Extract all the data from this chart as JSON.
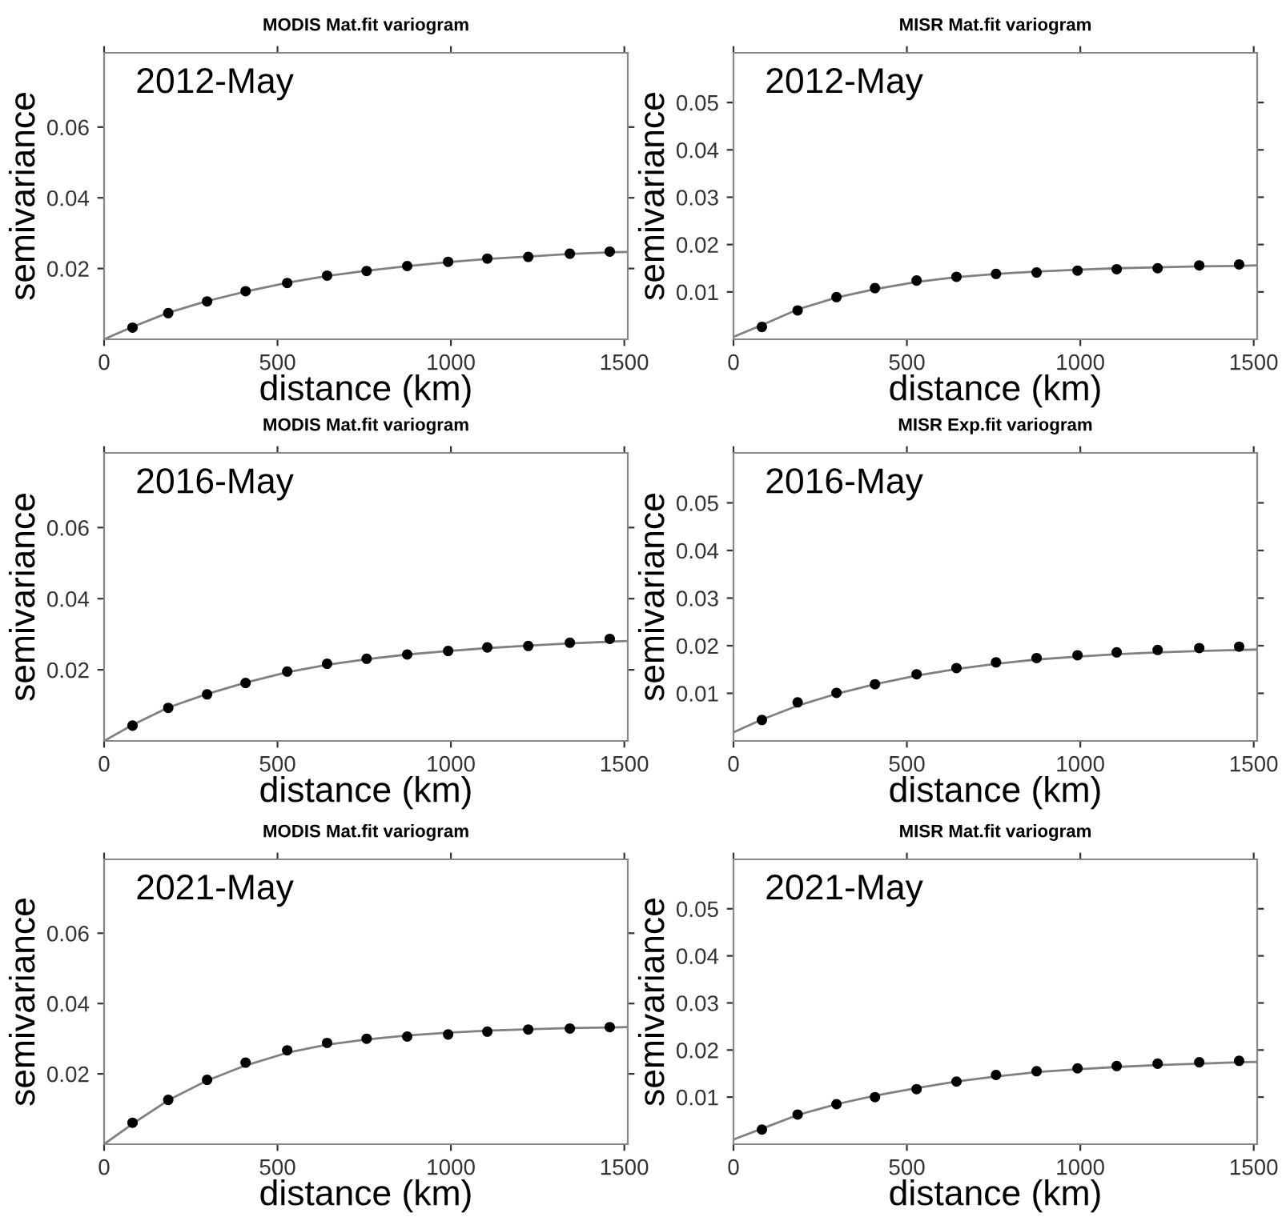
{
  "chart_data": [
    {
      "type": "scatter",
      "title": "MODIS Mat.fit variogram",
      "xlabel": "distance (km)",
      "ylabel": "semivariance",
      "annotations": [
        "2012-May"
      ],
      "xlim": [
        0,
        1510
      ],
      "xticks": [
        0,
        500,
        1000,
        1500
      ],
      "ylim": [
        0,
        0.081
      ],
      "yticks": [
        0.02,
        0.04,
        0.06
      ],
      "grid": false,
      "series": [
        {
          "color": "#000000",
          "marker": "circle",
          "x": [
            82,
            185,
            297,
            408,
            528,
            643,
            757,
            874,
            992,
            1105,
            1223,
            1343,
            1458
          ],
          "values": [
            0.0033,
            0.0074,
            0.0107,
            0.0136,
            0.0159,
            0.018,
            0.0193,
            0.0207,
            0.0219,
            0.0228,
            0.0233,
            0.0242,
            0.0248
          ]
        },
        {
          "type": "line",
          "color": "#808080",
          "marker": "none",
          "line_style": "solid",
          "x": [
            0,
            82,
            185,
            297,
            408,
            528,
            643,
            757,
            874,
            992,
            1105,
            1223,
            1343,
            1458,
            1510
          ],
          "values": [
            0,
            0.0035,
            0.0075,
            0.0108,
            0.0135,
            0.016,
            0.0179,
            0.0194,
            0.0207,
            0.0218,
            0.0227,
            0.0234,
            0.0241,
            0.0246,
            0.0247
          ]
        }
      ]
    },
    {
      "type": "scatter",
      "title": "MISR Mat.fit variogram",
      "xlabel": "distance (km)",
      "ylabel": "semivariance",
      "annotations": [
        "2012-May"
      ],
      "xlim": [
        0,
        1510
      ],
      "xticks": [
        0,
        500,
        1000,
        1500
      ],
      "ylim": [
        0,
        0.0605
      ],
      "yticks": [
        0.01,
        0.02,
        0.03,
        0.04,
        0.05
      ],
      "grid": false,
      "series": [
        {
          "color": "#000000",
          "marker": "circle",
          "x": [
            82,
            185,
            297,
            408,
            528,
            643,
            757,
            874,
            992,
            1105,
            1223,
            1343,
            1458
          ],
          "values": [
            0.0026,
            0.0061,
            0.0089,
            0.0108,
            0.0124,
            0.0132,
            0.0138,
            0.0141,
            0.0145,
            0.0148,
            0.015,
            0.0156,
            0.0158
          ]
        },
        {
          "type": "line",
          "color": "#808080",
          "marker": "none",
          "line_style": "solid",
          "x": [
            0,
            82,
            185,
            297,
            408,
            528,
            643,
            757,
            874,
            992,
            1105,
            1223,
            1343,
            1458,
            1510
          ],
          "values": [
            0.0005,
            0.003,
            0.0063,
            0.0088,
            0.0106,
            0.0121,
            0.0131,
            0.0138,
            0.0143,
            0.0147,
            0.015,
            0.0152,
            0.0154,
            0.0155,
            0.0156
          ]
        }
      ]
    },
    {
      "type": "scatter",
      "title": "MODIS Mat.fit variogram",
      "xlabel": "distance (km)",
      "ylabel": "semivariance",
      "annotations": [
        "2016-May"
      ],
      "xlim": [
        0,
        1510
      ],
      "xticks": [
        0,
        500,
        1000,
        1500
      ],
      "ylim": [
        0,
        0.081
      ],
      "yticks": [
        0.02,
        0.04,
        0.06
      ],
      "grid": false,
      "series": [
        {
          "color": "#000000",
          "marker": "circle",
          "x": [
            82,
            185,
            297,
            408,
            528,
            643,
            757,
            874,
            992,
            1105,
            1223,
            1343,
            1458
          ],
          "values": [
            0.0043,
            0.0093,
            0.0131,
            0.0163,
            0.0195,
            0.0217,
            0.0231,
            0.0243,
            0.0253,
            0.0263,
            0.0267,
            0.0276,
            0.0287
          ]
        },
        {
          "type": "line",
          "color": "#808080",
          "marker": "none",
          "line_style": "solid",
          "x": [
            0,
            82,
            185,
            297,
            408,
            528,
            643,
            757,
            874,
            992,
            1105,
            1223,
            1343,
            1458,
            1510
          ],
          "values": [
            0,
            0.0045,
            0.0094,
            0.0132,
            0.0164,
            0.0193,
            0.0214,
            0.023,
            0.0243,
            0.0253,
            0.0261,
            0.0268,
            0.0274,
            0.0279,
            0.0281
          ]
        }
      ]
    },
    {
      "type": "scatter",
      "title": "MISR Exp.fit variogram",
      "xlabel": "distance (km)",
      "ylabel": "semivariance",
      "annotations": [
        "2016-May"
      ],
      "xlim": [
        0,
        1510
      ],
      "xticks": [
        0,
        500,
        1000,
        1500
      ],
      "ylim": [
        0,
        0.0605
      ],
      "yticks": [
        0.01,
        0.02,
        0.03,
        0.04,
        0.05
      ],
      "grid": false,
      "series": [
        {
          "color": "#000000",
          "marker": "circle",
          "x": [
            82,
            185,
            297,
            408,
            528,
            643,
            757,
            874,
            992,
            1105,
            1223,
            1343,
            1458
          ],
          "values": [
            0.0044,
            0.0081,
            0.0101,
            0.0119,
            0.014,
            0.0153,
            0.0165,
            0.0174,
            0.018,
            0.0186,
            0.0191,
            0.0195,
            0.0198
          ]
        },
        {
          "type": "line",
          "color": "#808080",
          "marker": "none",
          "line_style": "solid",
          "x": [
            0,
            82,
            185,
            297,
            408,
            528,
            643,
            757,
            874,
            992,
            1105,
            1223,
            1343,
            1458,
            1510
          ],
          "values": [
            0.0018,
            0.0045,
            0.0074,
            0.0099,
            0.0119,
            0.0137,
            0.0151,
            0.0162,
            0.0171,
            0.0177,
            0.0182,
            0.0186,
            0.0189,
            0.0191,
            0.0192
          ]
        }
      ]
    },
    {
      "type": "scatter",
      "title": "MODIS Mat.fit variogram",
      "xlabel": "distance (km)",
      "ylabel": "semivariance",
      "annotations": [
        "2021-May"
      ],
      "xlim": [
        0,
        1510
      ],
      "xticks": [
        0,
        500,
        1000,
        1500
      ],
      "ylim": [
        0,
        0.081
      ],
      "yticks": [
        0.02,
        0.04,
        0.06
      ],
      "grid": false,
      "series": [
        {
          "color": "#000000",
          "marker": "circle",
          "x": [
            82,
            185,
            297,
            408,
            528,
            643,
            757,
            874,
            992,
            1105,
            1223,
            1343,
            1458
          ],
          "values": [
            0.0061,
            0.0126,
            0.0183,
            0.0232,
            0.0267,
            0.0288,
            0.03,
            0.0306,
            0.0312,
            0.032,
            0.0326,
            0.0329,
            0.0333
          ]
        },
        {
          "type": "line",
          "color": "#808080",
          "marker": "none",
          "line_style": "solid",
          "x": [
            0,
            82,
            185,
            297,
            408,
            528,
            643,
            757,
            874,
            992,
            1105,
            1223,
            1343,
            1458,
            1510
          ],
          "values": [
            0,
            0.0058,
            0.0125,
            0.0181,
            0.0224,
            0.026,
            0.0283,
            0.0298,
            0.0309,
            0.0317,
            0.0323,
            0.0327,
            0.033,
            0.0332,
            0.0333
          ]
        }
      ]
    },
    {
      "type": "scatter",
      "title": "MISR Mat.fit variogram",
      "xlabel": "distance (km)",
      "ylabel": "semivariance",
      "annotations": [
        "2021-May"
      ],
      "xlim": [
        0,
        1510
      ],
      "xticks": [
        0,
        500,
        1000,
        1500
      ],
      "ylim": [
        0,
        0.0605
      ],
      "yticks": [
        0.01,
        0.02,
        0.03,
        0.04,
        0.05
      ],
      "grid": false,
      "series": [
        {
          "color": "#000000",
          "marker": "circle",
          "x": [
            82,
            185,
            297,
            408,
            528,
            643,
            757,
            874,
            992,
            1105,
            1223,
            1343,
            1458
          ],
          "values": [
            0.0031,
            0.0063,
            0.0085,
            0.01,
            0.0117,
            0.0133,
            0.0147,
            0.0155,
            0.0161,
            0.0166,
            0.0171,
            0.0174,
            0.0177
          ]
        },
        {
          "type": "line",
          "color": "#808080",
          "marker": "none",
          "line_style": "solid",
          "x": [
            0,
            82,
            185,
            297,
            408,
            528,
            643,
            757,
            874,
            992,
            1105,
            1223,
            1343,
            1458,
            1510
          ],
          "values": [
            0.001,
            0.0033,
            0.0062,
            0.0085,
            0.0103,
            0.0119,
            0.0133,
            0.0144,
            0.0153,
            0.0159,
            0.0164,
            0.0168,
            0.0171,
            0.0174,
            0.0175
          ]
        }
      ]
    }
  ]
}
